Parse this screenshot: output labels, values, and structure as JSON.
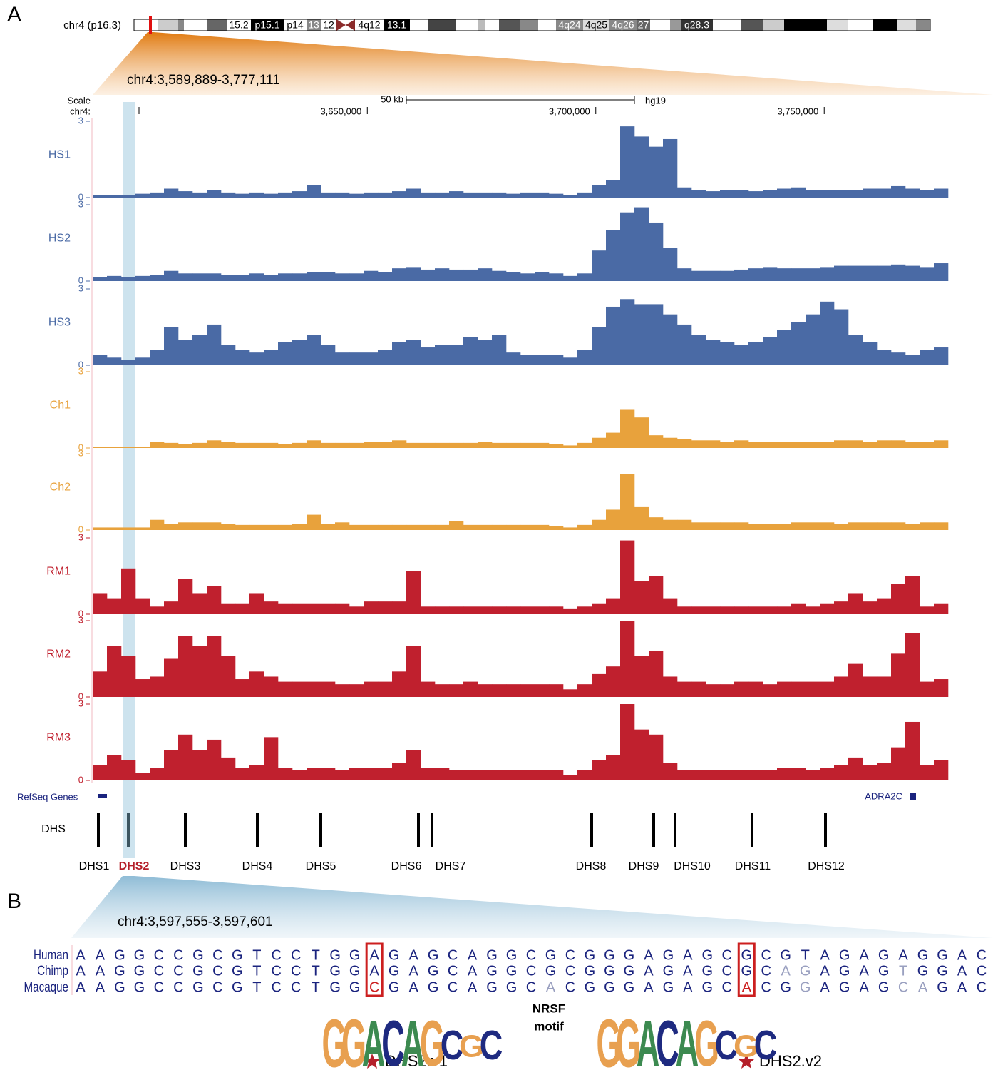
{
  "panel_labels": [
    "A",
    "B"
  ],
  "ideogram": {
    "chromosome": "chr4 (p16.3)",
    "bands": [
      "15.2",
      "p15.1",
      "p14",
      "13",
      "12",
      "4q12",
      "13.1",
      "4q24",
      "4q25",
      "4q26",
      "27",
      "q28.3"
    ]
  },
  "region": "chr4:3,589,889-3,777,111",
  "scale": {
    "label": "Scale",
    "chrom": "chr4:",
    "bar": "50 kb",
    "assembly": "hg19",
    "xlim": [
      3589889,
      3777111
    ],
    "xticks": [
      {
        "value": 3650000,
        "label": "3,650,000"
      },
      {
        "value": 3700000,
        "label": "3,700,000"
      },
      {
        "value": 3750000,
        "label": "3,750,000"
      }
    ]
  },
  "tracks": {
    "ylim": [
      0,
      3
    ],
    "yticks": [
      0,
      3
    ],
    "series": [
      {
        "name": "HS1",
        "color": "#4a6aa5",
        "values": [
          0.1,
          0.1,
          0.1,
          0.15,
          0.2,
          0.35,
          0.25,
          0.2,
          0.3,
          0.2,
          0.15,
          0.2,
          0.15,
          0.2,
          0.25,
          0.5,
          0.2,
          0.2,
          0.15,
          0.2,
          0.2,
          0.25,
          0.35,
          0.2,
          0.2,
          0.25,
          0.2,
          0.2,
          0.2,
          0.15,
          0.2,
          0.2,
          0.15,
          0.1,
          0.2,
          0.5,
          0.7,
          2.8,
          2.4,
          2.0,
          2.3,
          0.4,
          0.3,
          0.25,
          0.3,
          0.3,
          0.25,
          0.3,
          0.35,
          0.4,
          0.3,
          0.3,
          0.3,
          0.3,
          0.35,
          0.35,
          0.45,
          0.35,
          0.3,
          0.35
        ]
      },
      {
        "name": "HS2",
        "color": "#4a6aa5",
        "values": [
          0.15,
          0.2,
          0.15,
          0.2,
          0.25,
          0.4,
          0.3,
          0.3,
          0.3,
          0.25,
          0.25,
          0.3,
          0.25,
          0.3,
          0.3,
          0.35,
          0.35,
          0.3,
          0.3,
          0.4,
          0.35,
          0.5,
          0.55,
          0.45,
          0.5,
          0.45,
          0.45,
          0.5,
          0.4,
          0.35,
          0.3,
          0.35,
          0.3,
          0.2,
          0.3,
          1.2,
          2.0,
          2.7,
          2.9,
          2.3,
          1.3,
          0.5,
          0.4,
          0.4,
          0.4,
          0.45,
          0.5,
          0.55,
          0.5,
          0.5,
          0.5,
          0.55,
          0.6,
          0.6,
          0.6,
          0.6,
          0.65,
          0.6,
          0.55,
          0.7
        ]
      },
      {
        "name": "HS3",
        "color": "#4a6aa5",
        "values": [
          0.4,
          0.3,
          0.2,
          0.3,
          0.6,
          1.5,
          1.0,
          1.2,
          1.6,
          0.8,
          0.6,
          0.5,
          0.6,
          0.9,
          1.0,
          1.2,
          0.8,
          0.5,
          0.5,
          0.5,
          0.6,
          0.9,
          1.0,
          0.7,
          0.8,
          0.8,
          1.1,
          1.0,
          1.2,
          0.5,
          0.4,
          0.4,
          0.4,
          0.3,
          0.6,
          1.5,
          2.3,
          2.6,
          2.4,
          2.4,
          2.0,
          1.6,
          1.2,
          1.0,
          0.9,
          0.8,
          0.9,
          1.1,
          1.4,
          1.7,
          2.0,
          2.5,
          2.2,
          1.2,
          0.9,
          0.6,
          0.5,
          0.4,
          0.6,
          0.7
        ]
      },
      {
        "name": "Ch1",
        "color": "#e8a23c",
        "values": [
          0.05,
          0.05,
          0.05,
          0.05,
          0.25,
          0.2,
          0.15,
          0.2,
          0.3,
          0.25,
          0.2,
          0.2,
          0.2,
          0.15,
          0.2,
          0.3,
          0.2,
          0.2,
          0.2,
          0.25,
          0.25,
          0.3,
          0.2,
          0.2,
          0.2,
          0.2,
          0.2,
          0.25,
          0.2,
          0.2,
          0.2,
          0.2,
          0.15,
          0.1,
          0.2,
          0.4,
          0.6,
          1.5,
          1.2,
          0.5,
          0.4,
          0.35,
          0.3,
          0.3,
          0.25,
          0.3,
          0.25,
          0.25,
          0.25,
          0.25,
          0.25,
          0.25,
          0.3,
          0.3,
          0.25,
          0.3,
          0.3,
          0.25,
          0.25,
          0.3
        ]
      },
      {
        "name": "Ch2",
        "color": "#e8a23c",
        "values": [
          0.1,
          0.1,
          0.1,
          0.1,
          0.4,
          0.25,
          0.3,
          0.3,
          0.3,
          0.25,
          0.2,
          0.2,
          0.2,
          0.2,
          0.25,
          0.6,
          0.25,
          0.3,
          0.2,
          0.2,
          0.2,
          0.2,
          0.2,
          0.2,
          0.2,
          0.35,
          0.2,
          0.2,
          0.2,
          0.2,
          0.2,
          0.2,
          0.15,
          0.1,
          0.2,
          0.4,
          0.8,
          2.2,
          0.9,
          0.5,
          0.4,
          0.4,
          0.3,
          0.3,
          0.3,
          0.3,
          0.25,
          0.25,
          0.25,
          0.3,
          0.3,
          0.3,
          0.25,
          0.3,
          0.3,
          0.3,
          0.3,
          0.25,
          0.3,
          0.3
        ]
      },
      {
        "name": "RM1",
        "color": "#c0202e",
        "values": [
          0.8,
          0.6,
          1.8,
          0.6,
          0.3,
          0.5,
          1.4,
          0.8,
          1.1,
          0.4,
          0.4,
          0.8,
          0.5,
          0.4,
          0.4,
          0.4,
          0.4,
          0.4,
          0.3,
          0.5,
          0.5,
          0.5,
          1.7,
          0.3,
          0.3,
          0.3,
          0.3,
          0.3,
          0.3,
          0.3,
          0.3,
          0.3,
          0.3,
          0.2,
          0.3,
          0.4,
          0.6,
          2.9,
          1.3,
          1.5,
          0.6,
          0.3,
          0.3,
          0.3,
          0.3,
          0.3,
          0.3,
          0.3,
          0.3,
          0.4,
          0.3,
          0.4,
          0.5,
          0.8,
          0.5,
          0.6,
          1.2,
          1.5,
          0.3,
          0.4
        ]
      },
      {
        "name": "RM2",
        "color": "#c0202e",
        "values": [
          1.0,
          2.0,
          1.6,
          0.7,
          0.8,
          1.5,
          2.4,
          2.0,
          2.4,
          1.6,
          0.7,
          1.0,
          0.8,
          0.6,
          0.6,
          0.6,
          0.6,
          0.5,
          0.5,
          0.6,
          0.6,
          1.0,
          2.0,
          0.6,
          0.5,
          0.5,
          0.6,
          0.5,
          0.5,
          0.5,
          0.5,
          0.5,
          0.5,
          0.3,
          0.5,
          0.9,
          1.2,
          3.0,
          1.6,
          1.8,
          0.8,
          0.6,
          0.6,
          0.5,
          0.5,
          0.6,
          0.6,
          0.5,
          0.6,
          0.6,
          0.6,
          0.6,
          0.8,
          1.3,
          0.8,
          0.8,
          1.7,
          2.5,
          0.6,
          0.7
        ]
      },
      {
        "name": "RM3",
        "color": "#c0202e",
        "values": [
          0.6,
          1.0,
          0.8,
          0.3,
          0.5,
          1.2,
          1.8,
          1.2,
          1.6,
          0.9,
          0.5,
          0.6,
          1.7,
          0.5,
          0.4,
          0.5,
          0.5,
          0.4,
          0.5,
          0.5,
          0.5,
          0.7,
          1.2,
          0.5,
          0.5,
          0.4,
          0.4,
          0.4,
          0.4,
          0.4,
          0.4,
          0.4,
          0.4,
          0.2,
          0.4,
          0.8,
          1.0,
          3.0,
          2.0,
          1.8,
          0.7,
          0.4,
          0.4,
          0.4,
          0.4,
          0.4,
          0.4,
          0.4,
          0.5,
          0.5,
          0.4,
          0.5,
          0.6,
          0.9,
          0.6,
          0.7,
          1.3,
          2.3,
          0.6,
          0.8
        ]
      }
    ]
  },
  "genes": {
    "label": "RefSeq Genes",
    "names": [
      "ADRA2C"
    ]
  },
  "dhs": {
    "label": "DHS",
    "sites": [
      "DHS1",
      "DHS2",
      "DHS3",
      "DHS4",
      "DHS5",
      "DHS6",
      "DHS7",
      "DHS8",
      "DHS9",
      "DHS10",
      "DHS11",
      "DHS12"
    ]
  },
  "alignment": {
    "region": "chr4:3,597,555-3,597,601",
    "species": [
      "Human",
      "Chimp",
      "Macaque"
    ],
    "sequences": [
      "AAGGCCGCGTCCTGGAGAGCAGGCGCGGGAGAGCGCGTAGAGAGGAC",
      "AAGGCCGCGTCCTGGAGAGCAGGCGCGGGAGAGCGCAGAGAGTGGAC",
      "AAGGCCGCGTCCTGGCGAGCAGGCACGGGAGAGCACGGAGAGCAGAC"
    ]
  },
  "motif": {
    "letters": "GGACAGCGC",
    "label": [
      "NRSF",
      "motif"
    ],
    "variants": [
      "DHS2.v1",
      "DHS2.v2"
    ]
  }
}
